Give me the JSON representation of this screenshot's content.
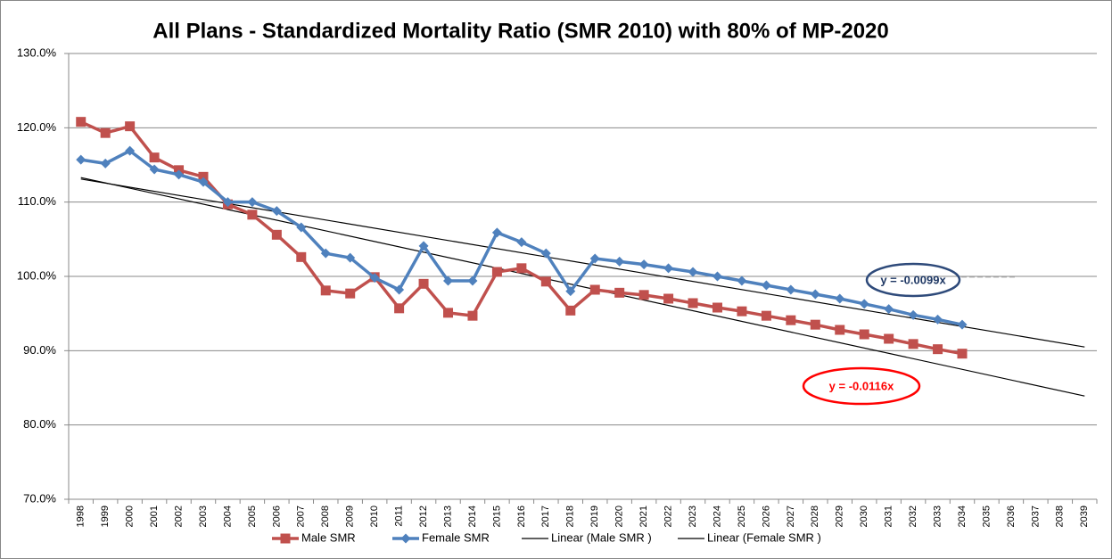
{
  "chart_data": {
    "type": "line",
    "title": "All Plans - Standardized Mortality Ratio (SMR 2010) with 80% of MP-2020",
    "categories": [
      "1998",
      "1999",
      "2000",
      "2001",
      "2002",
      "2003",
      "2004",
      "2005",
      "2006",
      "2007",
      "2008",
      "2009",
      "2010",
      "2011",
      "2012",
      "2013",
      "2014",
      "2015",
      "2016",
      "2017",
      "2018",
      "2019",
      "2020",
      "2021",
      "2022",
      "2023",
      "2024",
      "2025",
      "2026",
      "2027",
      "2028",
      "2029",
      "2030",
      "2031",
      "2032",
      "2033",
      "2034",
      "2035",
      "2036",
      "2037",
      "2038",
      "2039"
    ],
    "series": [
      {
        "name": "Male SMR",
        "color": "#c0504d",
        "marker": "square",
        "values": [
          120.8,
          119.3,
          120.2,
          116.0,
          114.3,
          113.4,
          109.7,
          108.3,
          105.6,
          102.6,
          98.1,
          97.7,
          99.9,
          95.7,
          99.0,
          95.1,
          94.7,
          100.6,
          101.1,
          99.3,
          95.4,
          98.2,
          97.8,
          97.5,
          97.0,
          96.4,
          95.8,
          95.3,
          94.7,
          94.1,
          93.5,
          92.8,
          92.2,
          91.6,
          90.9,
          90.2,
          89.6,
          null,
          null,
          null,
          null,
          null
        ]
      },
      {
        "name": "Female SMR",
        "color": "#4f81bd",
        "marker": "diamond",
        "values": [
          115.7,
          115.2,
          116.9,
          114.4,
          113.7,
          112.7,
          110.0,
          110.0,
          108.8,
          106.6,
          103.1,
          102.5,
          99.8,
          98.2,
          104.1,
          99.4,
          99.4,
          105.9,
          104.6,
          103.1,
          98.0,
          102.4,
          102.0,
          101.6,
          101.1,
          100.6,
          100.0,
          99.4,
          98.8,
          98.2,
          97.6,
          97.0,
          96.3,
          95.6,
          94.8,
          94.2,
          93.5,
          null,
          null,
          null,
          null,
          null
        ]
      },
      {
        "name": "Linear (Male SMR )",
        "color": "#000000",
        "marker": "none",
        "x": [
          "1998",
          "2039"
        ],
        "values": [
          113.3,
          83.9
        ]
      },
      {
        "name": "Linear (Female SMR )",
        "color": "#000000",
        "marker": "none",
        "x": [
          "1998",
          "2039"
        ],
        "values": [
          113.1,
          90.5
        ]
      }
    ],
    "annotations": [
      {
        "text": "y = -0.0099x",
        "color": "#1f3864",
        "edge": "#2e4a7a"
      },
      {
        "text": "y = -0.0116x",
        "color": "#ff0000",
        "edge": "#ff0000"
      }
    ],
    "ylim": [
      70,
      130
    ],
    "yticks": [
      {
        "value": 70,
        "label": "70.0%"
      },
      {
        "value": 80,
        "label": "80.0%"
      },
      {
        "value": 90,
        "label": "90.0%"
      },
      {
        "value": 100,
        "label": "100.0%"
      },
      {
        "value": 110,
        "label": "110.0%"
      },
      {
        "value": 120,
        "label": "120.0%"
      },
      {
        "value": 130,
        "label": "130.0%"
      }
    ],
    "grid": true,
    "legend": "bottom"
  }
}
